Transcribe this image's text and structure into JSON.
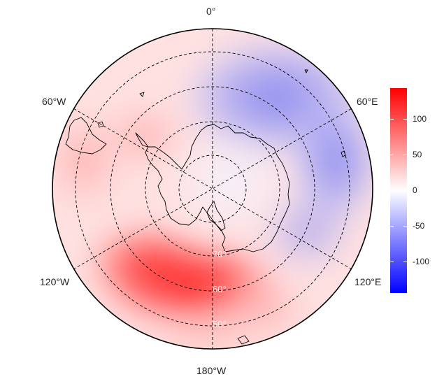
{
  "map": {
    "projection": "south-polar stereographic",
    "longitude_labels": {
      "top": "0°",
      "upper_left": "60°W",
      "upper_right": "60°E",
      "lower_left": "120°W",
      "lower_right": "120°E",
      "bottom": "180°W"
    },
    "latitude_labels": [
      "70°",
      "60°",
      "50°"
    ],
    "gridlines": "dashed",
    "coastline_color": "#000000"
  },
  "colorbar": {
    "ticks": [
      "100",
      "50",
      "0",
      "-50",
      "-100"
    ],
    "range": [
      -140,
      140
    ],
    "colors": {
      "high": "#ff0000",
      "mid": "#ffffff",
      "low": "#0000ff"
    }
  },
  "anomaly_field": {
    "max_positive_sector": "180°W (Amundsen–Ross Sea)",
    "max_negative_sector": "0°–60°E"
  }
}
